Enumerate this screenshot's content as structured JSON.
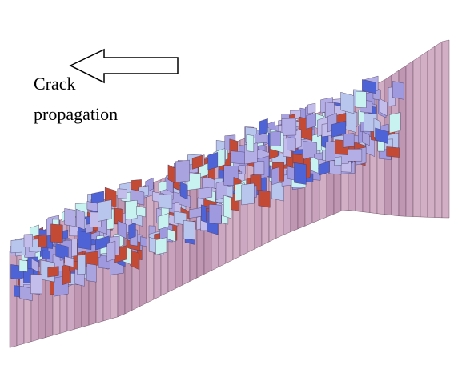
{
  "annotation": {
    "lines": [
      "Crack",
      "propagation"
    ]
  }
}
